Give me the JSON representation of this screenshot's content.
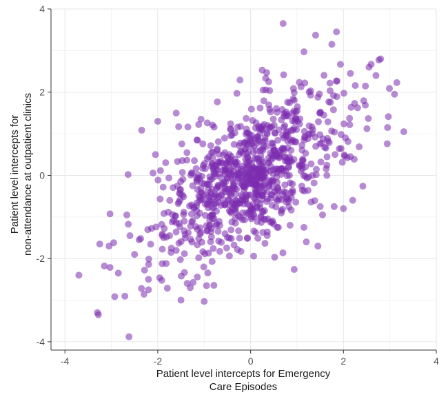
{
  "chart_data": {
    "type": "scatter",
    "title": "",
    "xlabel_lines": [
      "Patient level intercepts for Emergency",
      "Care Episodes"
    ],
    "ylabel_lines": [
      "Patient level intercepts for",
      "non-attendance at outpatient clinics"
    ],
    "xlim": [
      -4.3,
      4.0
    ],
    "ylim": [
      -4.2,
      4.0
    ],
    "xticks": [
      -4,
      -2,
      0,
      2,
      4
    ],
    "yticks": [
      -4,
      -2,
      0,
      2,
      4
    ],
    "grid": true,
    "point_color": "#7B2BAE",
    "point_opacity": 0.55,
    "sample_size": 900,
    "correlation": 0.62,
    "x_sd": 1.0,
    "y_sd": 1.0,
    "points": [
      [
        -3.7,
        -2.4
      ],
      [
        -3.3,
        -3.3
      ],
      [
        -3.28,
        -3.35
      ],
      [
        -3.25,
        -1.65
      ],
      [
        -3.15,
        -2.18
      ],
      [
        -3.05,
        -1.7
      ],
      [
        -2.95,
        -1.62
      ],
      [
        -2.85,
        -2.35
      ],
      [
        -2.62,
        -3.88
      ],
      [
        -2.6,
        -1.45
      ],
      [
        -2.5,
        -1.9
      ],
      [
        -2.4,
        -1.55
      ],
      [
        -2.35,
        -2.72
      ],
      [
        -2.2,
        -2.5
      ],
      [
        -2.2,
        -2.75
      ],
      [
        -2.05,
        0.5
      ],
      [
        -2.0,
        1.3
      ],
      [
        -1.55,
        1.17
      ],
      [
        -1.5,
        -3.0
      ],
      [
        -1.3,
        -2.7
      ],
      [
        -1.0,
        -3.03
      ],
      [
        -0.95,
        -2.65
      ],
      [
        0.7,
        3.65
      ],
      [
        1.4,
        3.37
      ],
      [
        1.85,
        3.45
      ],
      [
        1.75,
        3.15
      ],
      [
        1.15,
        2.97
      ],
      [
        0.25,
        2.53
      ],
      [
        1.2,
        -1.6
      ],
      [
        1.45,
        -1.7
      ],
      [
        1.55,
        -0.95
      ],
      [
        1.8,
        -0.75
      ],
      [
        2.2,
        -0.6
      ],
      [
        2.95,
        1.15
      ],
      [
        3.3,
        1.05
      ],
      [
        3.15,
        2.23
      ],
      [
        3.1,
        1.95
      ],
      [
        2.8,
        2.8
      ],
      [
        2.7,
        2.4
      ],
      [
        2.55,
        2.6
      ],
      [
        2.15,
        0.45
      ],
      [
        2.15,
        2.45
      ],
      [
        1.5,
        -0.75
      ],
      [
        2.0,
        -0.8
      ],
      [
        0.85,
        -1.2
      ]
    ]
  }
}
